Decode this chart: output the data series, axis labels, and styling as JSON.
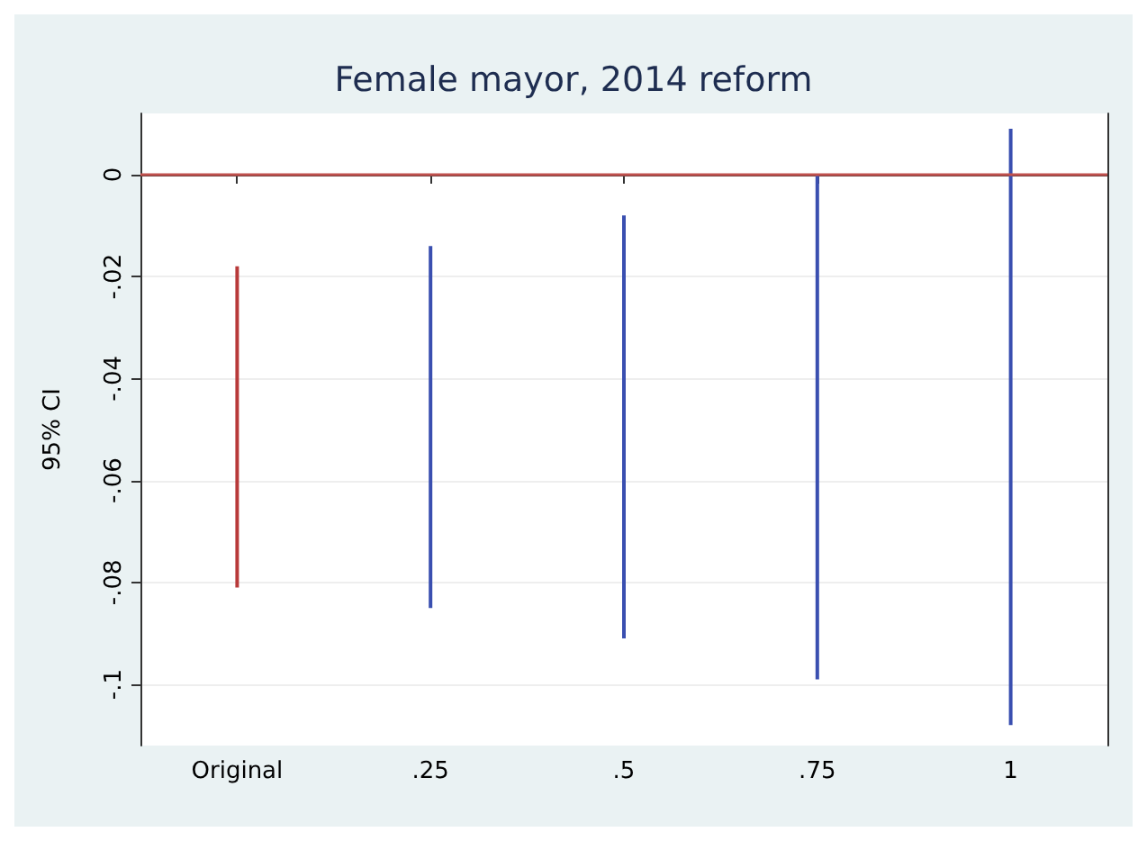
{
  "chart_data": {
    "type": "bar",
    "title": "Female mayor, 2014 reform",
    "ylabel": "95% CI",
    "categories": [
      "Original",
      ".25",
      ".5",
      ".75",
      "1"
    ],
    "base": [
      -0.081,
      -0.085,
      -0.091,
      -0.099,
      -0.108
    ],
    "values": [
      0.063,
      0.071,
      0.083,
      0.099,
      0.117
    ],
    "colors": [
      "#b83a3a",
      "#3a4fb0",
      "#3a4fb0",
      "#3a4fb0",
      "#3a4fb0"
    ],
    "ylim": [
      -0.112,
      0.012
    ],
    "yticks": [
      {
        "value": -0.1,
        "label": "-.1"
      },
      {
        "value": -0.08,
        "label": "-.08"
      },
      {
        "value": -0.06,
        "label": "-.06"
      },
      {
        "value": -0.04,
        "label": "-.04"
      },
      {
        "value": -0.02,
        "label": "-.02"
      },
      0
    ],
    "grid": "y",
    "ref_lines": [
      {
        "axis": "y",
        "value": 0,
        "color": "#c0504d"
      }
    ]
  }
}
